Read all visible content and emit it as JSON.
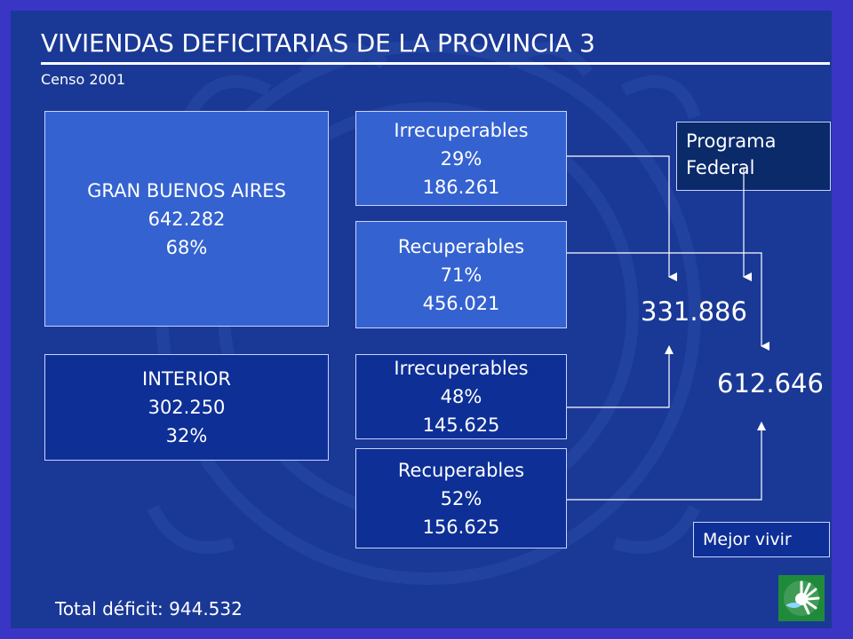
{
  "title": "VIVIENDAS DEFICITARIAS DE LA PROVINCIA 3",
  "subtitle": "Censo 2001",
  "gba": {
    "name": "GRAN BUENOS AIRES",
    "value": "642.282",
    "pct": "68%"
  },
  "interior": {
    "name": "INTERIOR",
    "value": "302.250",
    "pct": "32%"
  },
  "gba_irrecuperables": {
    "label": "Irrecuperables",
    "pct": "29%",
    "value": "186.261"
  },
  "gba_recuperables": {
    "label": "Recuperables",
    "pct": "71%",
    "value": "456.021"
  },
  "int_irrecuperables": {
    "label": "Irrecuperables",
    "pct": "48%",
    "value": "145.625"
  },
  "int_recuperables": {
    "label": "Recuperables",
    "pct": "52%",
    "value": "156.625"
  },
  "programa": {
    "line1": "Programa",
    "line2": "Federal"
  },
  "mejor_vivir": "Mejor vivir",
  "total_programa_federal": "331.886",
  "total_mejor_vivir": "612.646",
  "total_deficit": "Total déficit: 944.532",
  "colors": {
    "background": "#1a3996",
    "frame": "#3b35c6",
    "light_box": "#3462d0",
    "dark_box": "#0d2f96",
    "navy_box": "#0a2a6a",
    "logo": "#1f8a3a"
  }
}
